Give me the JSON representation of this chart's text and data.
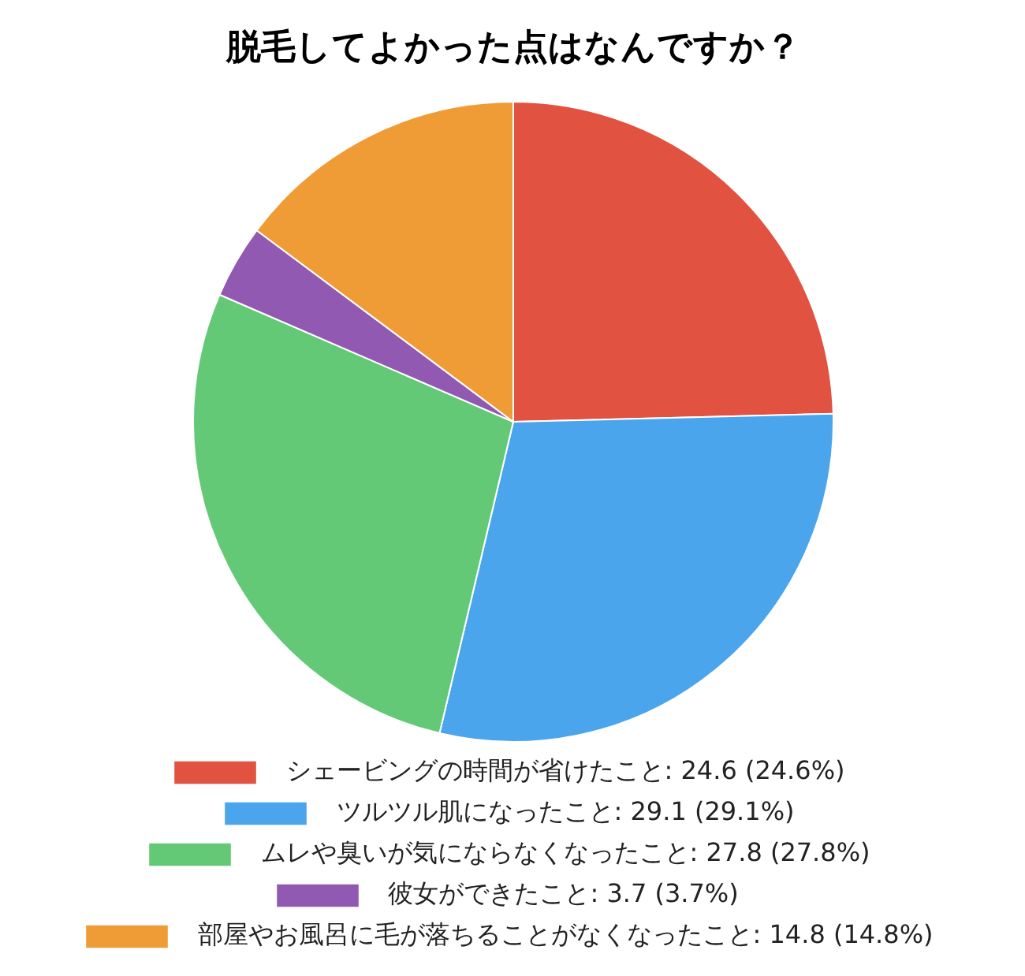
{
  "chart_data": {
    "type": "pie",
    "title": "脱毛してよかった点はなんですか？",
    "categories": [
      "シェービングの時間が省けたこと: 24.6 (24.6%)",
      "ツルツル肌になったこと: 29.1 (29.1%)",
      "ムレや臭いが気にならなくなったこと: 27.8 (27.8%)",
      "彼女ができたこと: 3.7 (3.7%)",
      "部屋やお風呂に毛が落ちることがなくなったこと: 14.8 (14.8%)"
    ],
    "values": [
      24.6,
      29.1,
      27.8,
      3.7,
      14.8
    ],
    "colors": [
      "#e15241",
      "#4aa5ec",
      "#64c976",
      "#9259b3",
      "#f09c36"
    ],
    "legend": "bottom"
  }
}
